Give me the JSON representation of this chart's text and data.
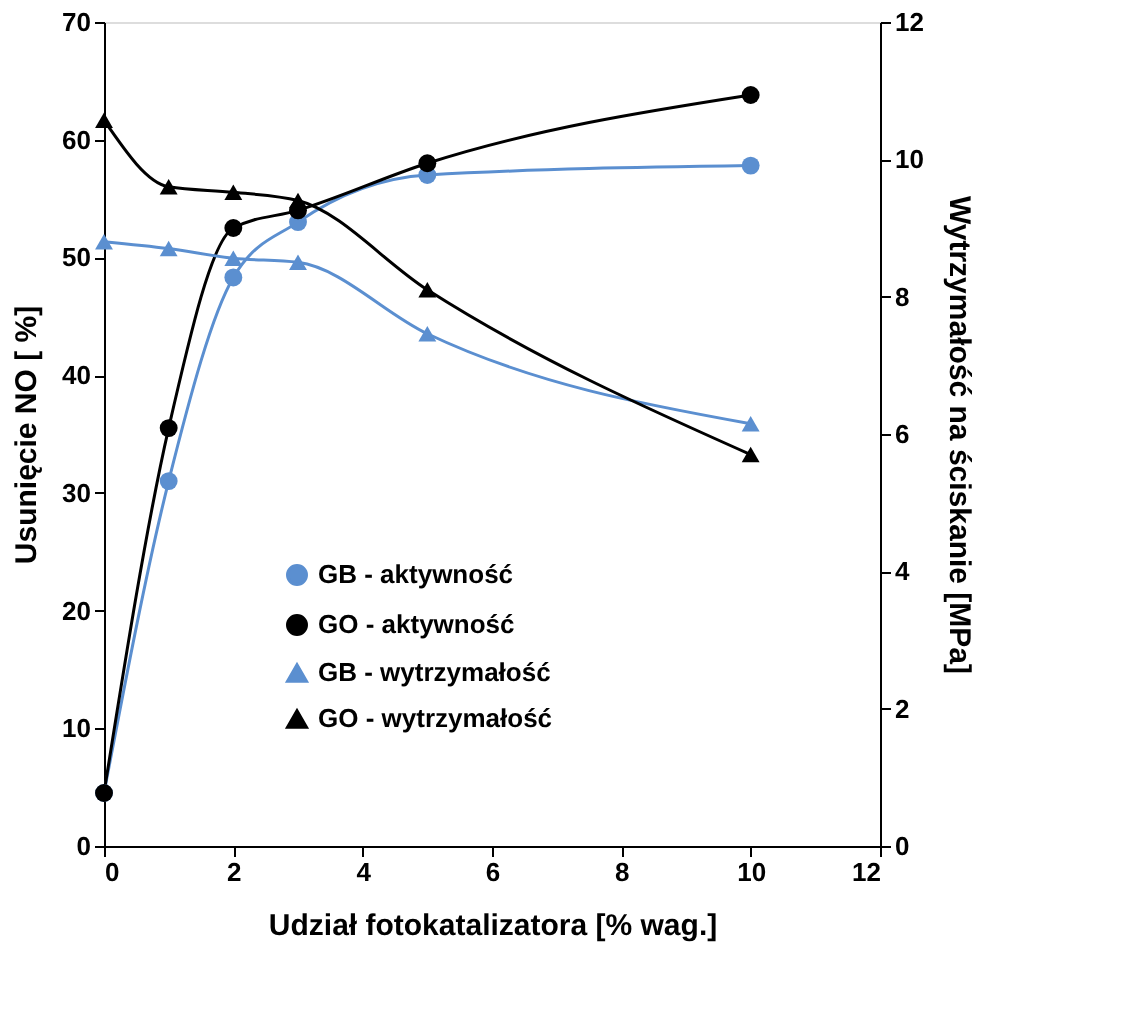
{
  "chart_data": {
    "type": "line",
    "xlabel": "Udział fotokatalizatora [% wag.]",
    "ylabel": "Usunięcie NO [ %]",
    "y2label": "Wytrzymałość na ściskanie [MPa]",
    "x": [
      0,
      1,
      2,
      3,
      5,
      10
    ],
    "series": [
      {
        "name": "GB - aktywność",
        "color": "#5b8fd0",
        "marker": "circle",
        "values": [
          4.5,
          31,
          48.3,
          53,
          57,
          57.8
        ]
      },
      {
        "name": "GO - aktywność",
        "color": "#000000",
        "marker": "circle",
        "values": [
          4.5,
          35.5,
          52.5,
          54,
          58,
          63.8
        ]
      },
      {
        "name": "GB - wytrzymałość",
        "color": "#5b8fd0",
        "marker": "triangle",
        "axis": "y2",
        "values": [
          8.8,
          8.7,
          8.56,
          8.5,
          7.46,
          6.15
        ]
      },
      {
        "name": "GO - wytrzymałość",
        "color": "#000000",
        "marker": "triangle",
        "axis": "y2",
        "values": [
          10.57,
          9.6,
          9.52,
          9.4,
          8.1,
          5.7
        ]
      }
    ],
    "xlim": [
      0,
      12
    ],
    "xticks": [
      0,
      2,
      4,
      6,
      8,
      10,
      12
    ],
    "ylim": [
      0,
      70
    ],
    "yticks": [
      0,
      10,
      20,
      30,
      40,
      50,
      60,
      70
    ],
    "y2lim": [
      0,
      12
    ],
    "y2ticks": [
      0,
      2,
      4,
      6,
      8,
      10,
      12
    ],
    "grid": false,
    "legend": "bottom"
  }
}
